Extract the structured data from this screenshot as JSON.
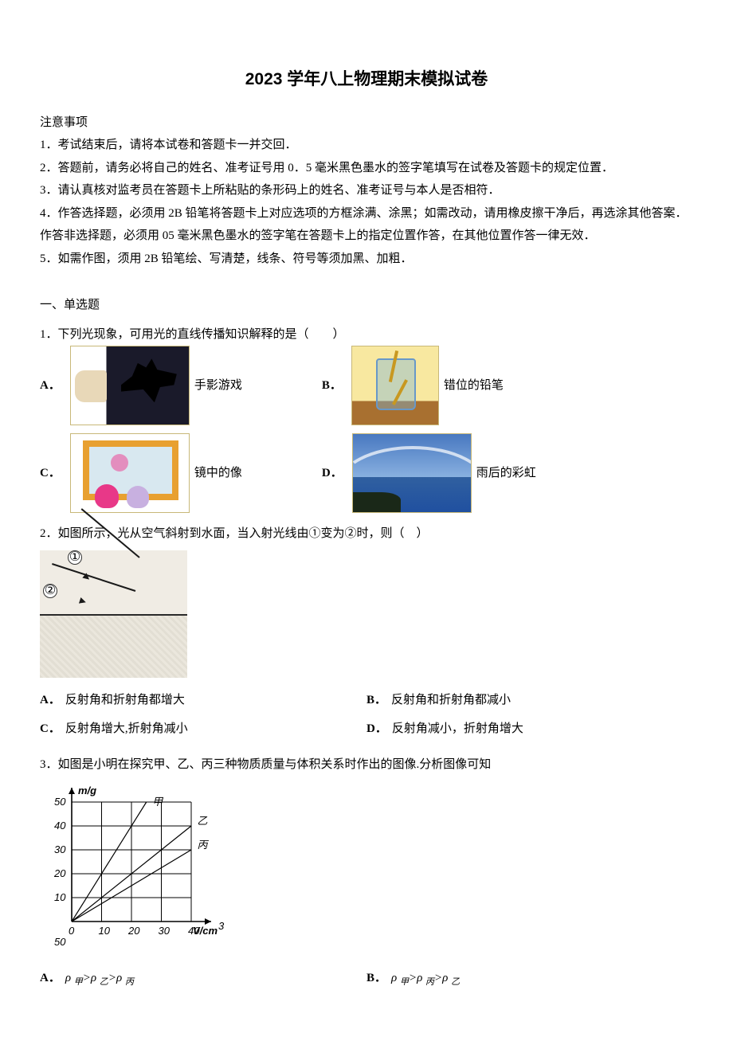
{
  "title": "2023 学年八上物理期末模拟试卷",
  "notice_header": "注意事项",
  "notices": {
    "n1": "1．考试结束后，请将本试卷和答题卡一并交回．",
    "n2": "2．答题前，请务必将自己的姓名、准考证号用 0．5 毫米黑色墨水的签字笔填写在试卷及答题卡的规定位置．",
    "n3": "3．请认真核对监考员在答题卡上所粘贴的条形码上的姓名、准考证号与本人是否相符．",
    "n4": "4．作答选择题，必须用 2B 铅笔将答题卡上对应选项的方框涂满、涂黑；如需改动，请用橡皮擦干净后，再选涂其他答案．作答非选择题，必须用 05 毫米黑色墨水的签字笔在答题卡上的指定位置作答，在其他位置作答一律无效．",
    "n5": "5．如需作图，须用 2B 铅笔绘、写清楚，线条、符号等须加黑、加粗．"
  },
  "section1": "一、单选题",
  "q1": {
    "stem": "1．下列光现象，可用光的直线传播知识解释的是（　　）",
    "optA_label": "A．",
    "optA_text": "手影游戏",
    "optB_label": "B．",
    "optB_text": "错位的铅笔",
    "optC_label": "C．",
    "optC_text": "镜中的像",
    "optD_label": "D．",
    "optD_text": "雨后的彩虹"
  },
  "q2": {
    "stem": "2．如图所示，光从空气斜射到水面，当入射光线由①变为②时，则（　）",
    "ray1_label": "①",
    "ray2_label": "②",
    "optA_label": "A．",
    "optA_text": "反射角和折射角都增大",
    "optB_label": "B．",
    "optB_text": "反射角和折射角都减小",
    "optC_label": "C．",
    "optC_text": "反射角增大,折射角减小",
    "optD_label": "D．",
    "optD_text": "反射角减小，折射角增大"
  },
  "q3": {
    "stem": "3．如图是小明在探究甲、乙、丙三种物质质量与体积关系时作出的图像.分析图像可知",
    "chart": {
      "type": "line",
      "y_label": "m/g",
      "x_label_html": "V/cm³",
      "x_ticks": [
        "0",
        "10",
        "20",
        "30",
        "40"
      ],
      "y_ticks": [
        "10",
        "20",
        "30",
        "40",
        "50"
      ],
      "extra_tick": "50",
      "series": [
        {
          "name": "甲",
          "points": [
            [
              0,
              0
            ],
            [
              25,
              50
            ]
          ],
          "label_pos": [
            27,
            50
          ]
        },
        {
          "name": "乙",
          "points": [
            [
              0,
              0
            ],
            [
              40,
              40
            ]
          ],
          "label_pos": [
            42,
            42
          ]
        },
        {
          "name": "丙",
          "points": [
            [
              0,
              0
            ],
            [
              40,
              30
            ]
          ],
          "label_pos": [
            42,
            32
          ]
        }
      ],
      "x_max": 40,
      "y_max": 50,
      "line_color": "#000000",
      "grid_color": "#000000",
      "background": "#ffffff",
      "axis_fontsize": 13,
      "line_width": 1.2
    },
    "optA_label": "A．",
    "optA_html": "ρ <span class='sub'>甲</span>>ρ <span class='sub'>乙</span>>ρ <span class='sub'>丙</span>",
    "optB_label": "B．",
    "optB_html": "ρ <span class='sub'>甲</span>>ρ <span class='sub'>丙</span>>ρ <span class='sub'>乙</span>"
  }
}
